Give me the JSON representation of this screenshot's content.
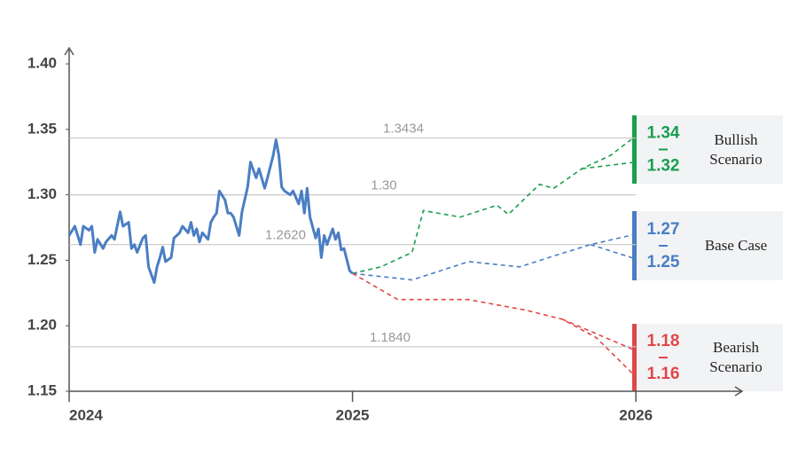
{
  "chart_data": {
    "type": "line",
    "xlim": [
      2024,
      2026.4
    ],
    "xticks": [
      2024,
      2025,
      2026
    ],
    "ylim": [
      1.15,
      1.41
    ],
    "yticks": [
      {
        "value": 1.15,
        "label": "1.15"
      },
      {
        "value": 1.2,
        "label": "1.20"
      },
      {
        "value": 1.25,
        "label": "1.25"
      },
      {
        "value": 1.3,
        "label": "1.30"
      },
      {
        "value": 1.35,
        "label": "1.35"
      },
      {
        "value": 1.4,
        "label": "1.40"
      }
    ],
    "reference_lines": [
      {
        "value": 1.3434,
        "label": "1.3434"
      },
      {
        "value": 1.3,
        "label": "1.30"
      },
      {
        "value": 1.262,
        "label": "1.2620"
      },
      {
        "value": 1.184,
        "label": "1.1840"
      }
    ],
    "history": {
      "color": "#4a7ec4",
      "x": [
        2024.0,
        2024.02,
        2024.04,
        2024.05,
        2024.07,
        2024.08,
        2024.09,
        2024.1,
        2024.12,
        2024.13,
        2024.15,
        2024.16,
        2024.18,
        2024.19,
        2024.21,
        2024.22,
        2024.23,
        2024.24,
        2024.26,
        2024.27,
        2024.28,
        2024.3,
        2024.31,
        2024.32,
        2024.33,
        2024.34,
        2024.36,
        2024.37,
        2024.38,
        2024.39,
        2024.4,
        2024.42,
        2024.43,
        2024.44,
        2024.45,
        2024.46,
        2024.47,
        2024.49,
        2024.5,
        2024.51,
        2024.52,
        2024.53,
        2024.55,
        2024.56,
        2024.57,
        2024.58,
        2024.6,
        2024.61,
        2024.63,
        2024.64,
        2024.66,
        2024.67,
        2024.69,
        2024.7,
        2024.72,
        2024.73,
        2024.74,
        2024.75,
        2024.76,
        2024.78,
        2024.79,
        2024.81,
        2024.82,
        2024.83,
        2024.84,
        2024.85,
        2024.87,
        2024.88,
        2024.89,
        2024.9,
        2024.91,
        2024.93,
        2024.94,
        2024.95,
        2024.96,
        2024.97,
        2024.99,
        2025.0
      ],
      "values": [
        1.269,
        1.276,
        1.262,
        1.276,
        1.273,
        1.276,
        1.256,
        1.266,
        1.259,
        1.264,
        1.269,
        1.266,
        1.287,
        1.276,
        1.279,
        1.259,
        1.262,
        1.256,
        1.267,
        1.269,
        1.245,
        1.233,
        1.245,
        1.252,
        1.26,
        1.249,
        1.252,
        1.267,
        1.269,
        1.271,
        1.276,
        1.271,
        1.279,
        1.269,
        1.274,
        1.264,
        1.271,
        1.266,
        1.279,
        1.283,
        1.286,
        1.303,
        1.296,
        1.286,
        1.286,
        1.283,
        1.269,
        1.287,
        1.306,
        1.325,
        1.313,
        1.32,
        1.305,
        1.313,
        1.33,
        1.342,
        1.33,
        1.306,
        1.303,
        1.3,
        1.303,
        1.293,
        1.303,
        1.286,
        1.305,
        1.283,
        1.267,
        1.274,
        1.252,
        1.269,
        1.262,
        1.274,
        1.266,
        1.271,
        1.258,
        1.259,
        1.242,
        1.24
      ]
    },
    "series": [
      {
        "name": "Bullish Scenario",
        "color": "#1a9e4f",
        "x": [
          2025.0,
          2025.1,
          2025.21,
          2025.25,
          2025.38,
          2025.51,
          2025.55,
          2025.66,
          2025.71,
          2025.81,
          2025.91,
          2026.0
        ],
        "values": [
          1.24,
          1.245,
          1.256,
          1.288,
          1.283,
          1.292,
          1.285,
          1.308,
          1.305,
          1.32,
          1.33,
          1.345
        ],
        "branch": {
          "x": [
            2025.81,
            2026.0
          ],
          "values": [
            1.32,
            1.325
          ]
        },
        "range": [
          1.34,
          1.32
        ]
      },
      {
        "name": "Base Case",
        "color": "#4a7ec4",
        "x": [
          2025.0,
          2025.21,
          2025.41,
          2025.59,
          2025.72,
          2025.84,
          2026.0
        ],
        "values": [
          1.24,
          1.235,
          1.249,
          1.245,
          1.254,
          1.262,
          1.27
        ],
        "branch": {
          "x": [
            2025.84,
            2026.0
          ],
          "values": [
            1.262,
            1.251
          ]
        },
        "range": [
          1.27,
          1.25
        ]
      },
      {
        "name": "Bearish Scenario",
        "color": "#e04848",
        "x": [
          2025.0,
          2025.16,
          2025.41,
          2025.61,
          2025.74,
          2025.86,
          2026.0
        ],
        "values": [
          1.24,
          1.22,
          1.22,
          1.212,
          1.205,
          1.191,
          1.161
        ],
        "branch": {
          "x": [
            2025.74,
            2026.0
          ],
          "values": [
            1.205,
            1.181
          ]
        },
        "range": [
          1.18,
          1.16
        ]
      }
    ]
  }
}
